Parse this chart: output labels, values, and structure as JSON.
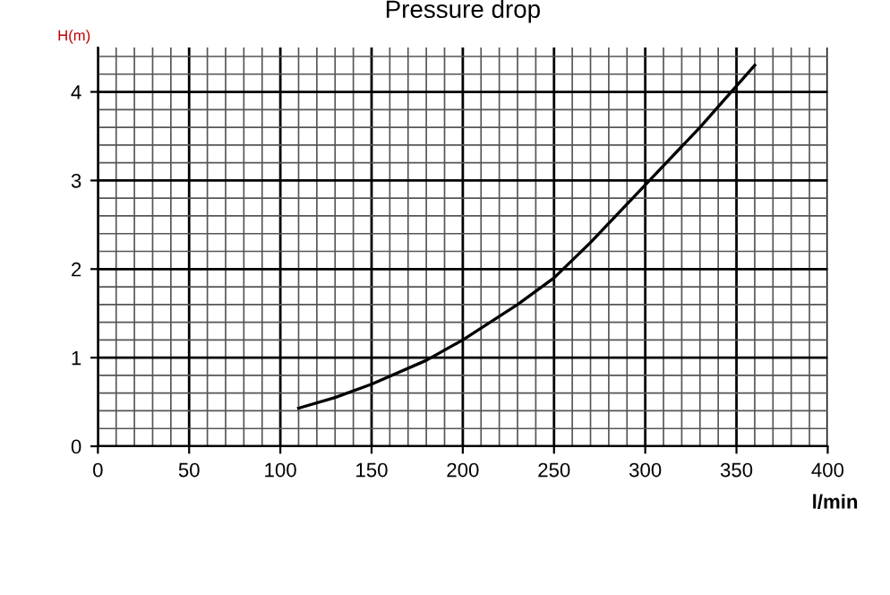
{
  "chart_data": {
    "type": "line",
    "title": "Pressure drop",
    "xlabel": "l/min",
    "ylabel": "H(m)",
    "series": [
      {
        "color": "#000000",
        "x": [
          110,
          130,
          150,
          180,
          200,
          230,
          250,
          270,
          300,
          330,
          360
        ],
        "values": [
          0.43,
          0.55,
          0.7,
          0.97,
          1.2,
          1.6,
          1.9,
          2.3,
          2.95,
          3.6,
          4.3
        ]
      }
    ],
    "xlim": [
      0,
      400
    ],
    "xticks": [
      0,
      50,
      100,
      150,
      200,
      250,
      300,
      350,
      400
    ],
    "ylim": [
      0,
      4.5
    ],
    "yticks": [
      0,
      1,
      2,
      3,
      4
    ],
    "grid": true,
    "marker": "none",
    "line_style": "solid"
  }
}
